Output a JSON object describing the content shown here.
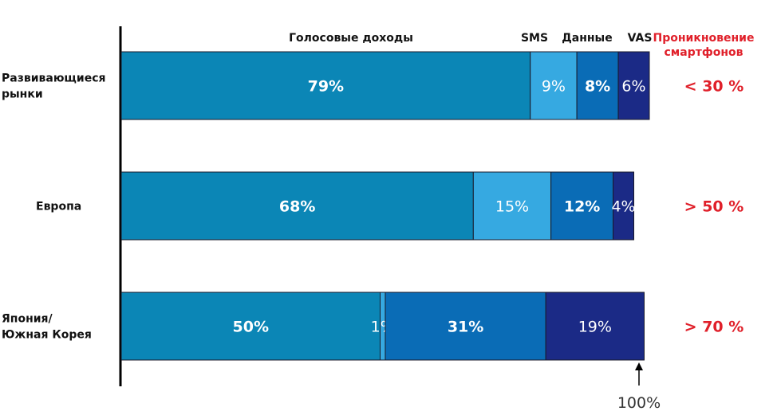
{
  "chart_data": {
    "type": "bar",
    "orientation": "horizontal-stacked",
    "categories": [
      "Развивающиеся рынки",
      "Европа",
      "Япония/ Южная Корея"
    ],
    "series": [
      {
        "name": "Голосовые доходы",
        "values": [
          79,
          68,
          50
        ],
        "color": "#0b86b6",
        "bold": true
      },
      {
        "name": "SMS",
        "values": [
          9,
          15,
          1
        ],
        "color": "#36a9e1",
        "bold": false
      },
      {
        "name": "Данные",
        "values": [
          8,
          12,
          31
        ],
        "color": "#0a6cb6",
        "bold": true
      },
      {
        "name": "VAS",
        "values": [
          6,
          4,
          19
        ],
        "color": "#1b2a86",
        "bold": false
      }
    ],
    "smartphone_header": "Проникновение смартфонов",
    "smartphone_header_lines": [
      "Проникновение",
      "смартфонов"
    ],
    "smartphone_penetration": [
      "< 30 %",
      "> 50 %",
      "> 70 %"
    ],
    "category_lines": [
      [
        "Развивающиеся",
        "рынки"
      ],
      [
        "Европа"
      ],
      [
        "Япония/",
        "Южная Корея"
      ]
    ],
    "reference_label": "100%",
    "xlim": [
      0,
      100
    ],
    "accent_color": "#e0202a"
  }
}
